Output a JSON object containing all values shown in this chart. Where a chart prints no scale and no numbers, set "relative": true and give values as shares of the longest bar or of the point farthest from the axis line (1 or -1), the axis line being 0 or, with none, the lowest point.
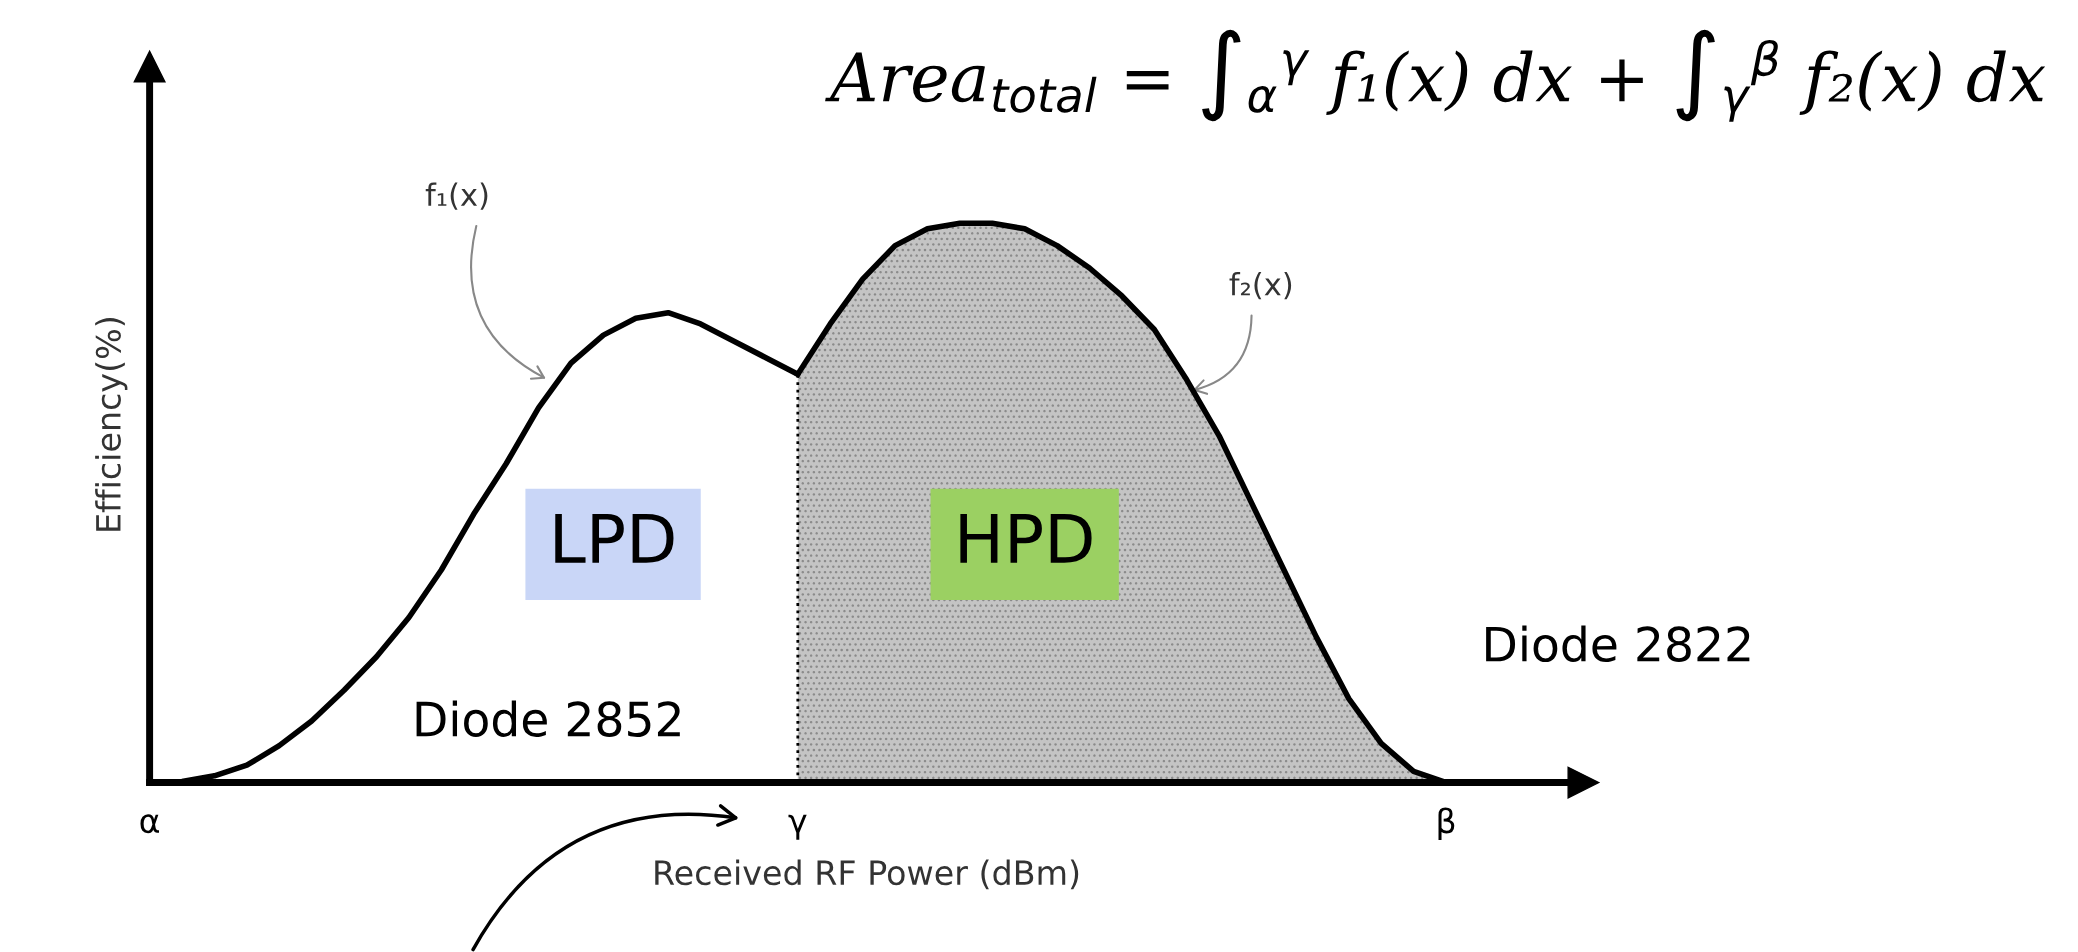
{
  "chart_data": {
    "type": "area",
    "title": "Area$_{total}$ = ∫$_{α}$$^{γ}$ f₁(x) dx + ∫$_{γ}$$^{β}$ f₂(x) dx",
    "xlabel": "Received RF Power (dBm)",
    "ylabel": "Efficiency(%)",
    "relative": true,
    "legend": false,
    "grid": false,
    "categories": [
      "α",
      null,
      null,
      null,
      null,
      null,
      null,
      null,
      null,
      null,
      null,
      null,
      null,
      null,
      null,
      null,
      null,
      null,
      null,
      null,
      "γ",
      null,
      null,
      null,
      null,
      null,
      null,
      null,
      null,
      null,
      null,
      null,
      null,
      null,
      null,
      null,
      null,
      null,
      null,
      null,
      "β"
    ],
    "series": [
      {
        "name": "f₁(x)",
        "type": "line",
        "color": "#000000",
        "values": [
          0,
          0.002,
          0.012,
          0.031,
          0.066,
          0.11,
          0.165,
          0.225,
          0.295,
          0.38,
          0.48,
          0.57,
          0.67,
          0.75,
          0.8,
          0.83,
          0.84,
          0.82,
          0.79,
          0.76,
          0.73,
          null,
          null,
          null,
          null,
          null,
          null,
          null,
          null,
          null,
          null,
          null,
          null,
          null,
          null,
          null,
          null,
          null,
          null,
          null,
          null
        ]
      },
      {
        "name": "f₂(x)",
        "color": "#c4c4c4",
        "values": [
          null,
          null,
          null,
          null,
          null,
          null,
          null,
          null,
          null,
          null,
          null,
          null,
          null,
          null,
          null,
          null,
          null,
          null,
          null,
          null,
          0.73,
          0.82,
          0.9,
          0.96,
          0.99,
          1.0,
          1.0,
          0.99,
          0.96,
          0.92,
          0.87,
          0.81,
          0.72,
          0.62,
          0.5,
          0.38,
          0.26,
          0.15,
          0.07,
          0.02,
          0
        ]
      }
    ],
    "annotations": [
      "LPD",
      "HPD",
      "Diode 2852",
      "Diode 2822"
    ]
  }
}
